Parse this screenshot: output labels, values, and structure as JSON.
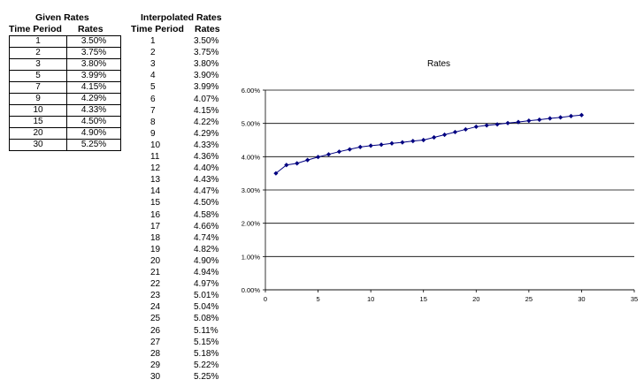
{
  "given": {
    "title": "Given Rates",
    "col_period": "Time Period",
    "col_rate": "Rates",
    "rows": [
      {
        "period": "1",
        "rate": "3.50%"
      },
      {
        "period": "2",
        "rate": "3.75%"
      },
      {
        "period": "3",
        "rate": "3.80%"
      },
      {
        "period": "5",
        "rate": "3.99%"
      },
      {
        "period": "7",
        "rate": "4.15%"
      },
      {
        "period": "9",
        "rate": "4.29%"
      },
      {
        "period": "10",
        "rate": "4.33%"
      },
      {
        "period": "15",
        "rate": "4.50%"
      },
      {
        "period": "20",
        "rate": "4.90%"
      },
      {
        "period": "30",
        "rate": "5.25%"
      }
    ]
  },
  "interpolated": {
    "title": "Interpolated Rates",
    "col_period": "Time Period",
    "col_rate": "Rates"
  },
  "chart_data": {
    "type": "line",
    "title": "Rates",
    "xlabel": "",
    "ylabel": "",
    "xlim": [
      0,
      35
    ],
    "ylim": [
      0,
      0.06
    ],
    "x_ticks": [
      "0",
      "5",
      "10",
      "15",
      "20",
      "25",
      "30",
      "35"
    ],
    "y_ticks": [
      "0.00%",
      "1.00%",
      "2.00%",
      "3.00%",
      "4.00%",
      "5.00%",
      "6.00%"
    ],
    "grid": "horizontal",
    "legend": "none",
    "series_color": "#000080",
    "x": [
      1,
      2,
      3,
      4,
      5,
      6,
      7,
      8,
      9,
      10,
      11,
      12,
      13,
      14,
      15,
      16,
      17,
      18,
      19,
      20,
      21,
      22,
      23,
      24,
      25,
      26,
      27,
      28,
      29,
      30
    ],
    "values": [
      0.035,
      0.0375,
      0.038,
      0.039,
      0.0399,
      0.0407,
      0.0415,
      0.0422,
      0.0429,
      0.0433,
      0.0436,
      0.044,
      0.0443,
      0.0447,
      0.045,
      0.0458,
      0.0466,
      0.0474,
      0.0482,
      0.049,
      0.0494,
      0.0497,
      0.0501,
      0.0504,
      0.0508,
      0.0511,
      0.0515,
      0.0518,
      0.0522,
      0.0525
    ],
    "labels": [
      "3.50%",
      "3.75%",
      "3.80%",
      "3.90%",
      "3.99%",
      "4.07%",
      "4.15%",
      "4.22%",
      "4.29%",
      "4.33%",
      "4.36%",
      "4.40%",
      "4.43%",
      "4.47%",
      "4.50%",
      "4.58%",
      "4.66%",
      "4.74%",
      "4.82%",
      "4.90%",
      "4.94%",
      "4.97%",
      "5.01%",
      "5.04%",
      "5.08%",
      "5.11%",
      "5.15%",
      "5.18%",
      "5.22%",
      "5.25%"
    ]
  }
}
